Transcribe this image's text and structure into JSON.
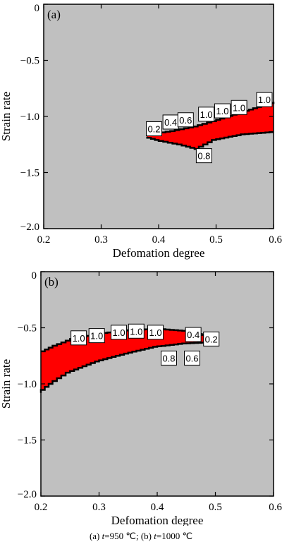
{
  "colors": {
    "background": "#c0c0c0",
    "instability": "#ff0000",
    "contour": "#000000"
  },
  "caption": {
    "a_prefix": "(a) ",
    "a_var": "t",
    "a_value": "=950 ℃; ",
    "b_prefix": "(b) ",
    "b_var": "t",
    "b_value": "=1000 ℃"
  },
  "chart_data": [
    {
      "type": "heatmap",
      "panel_label": "(a)",
      "title": "",
      "xlabel": "Defomation degree",
      "ylabel": "Strain rate",
      "xlim": [
        0.2,
        0.6
      ],
      "ylim": [
        -2.0,
        0
      ],
      "xticks": [
        0.2,
        0.3,
        0.4,
        0.5,
        0.6
      ],
      "xtick_labels": [
        "0.2",
        "0.3",
        "0.4",
        "0.5",
        "0.6"
      ],
      "yticks": [
        0,
        -0.5,
        -1.0,
        -1.5,
        -2.0
      ],
      "ytick_labels": [
        "0",
        "−0.5",
        "−1.0",
        "−1.5",
        "−2.0"
      ],
      "instability_region": {
        "upper": [
          [
            0.38,
            -1.16
          ],
          [
            0.42,
            -1.13
          ],
          [
            0.46,
            -1.09
          ],
          [
            0.5,
            -1.03
          ],
          [
            0.55,
            -0.95
          ],
          [
            0.6,
            -0.87
          ]
        ],
        "lower": [
          [
            0.6,
            -1.14
          ],
          [
            0.55,
            -1.16
          ],
          [
            0.5,
            -1.21
          ],
          [
            0.47,
            -1.29
          ],
          [
            0.44,
            -1.25
          ],
          [
            0.4,
            -1.21
          ],
          [
            0.38,
            -1.18
          ]
        ]
      },
      "contour_labels": [
        {
          "text": "0.2",
          "x": 0.392,
          "y": -1.11
        },
        {
          "text": "0.4",
          "x": 0.421,
          "y": -1.05
        },
        {
          "text": "0.6",
          "x": 0.447,
          "y": -1.03
        },
        {
          "text": "1.0",
          "x": 0.483,
          "y": -0.98
        },
        {
          "text": "1.0",
          "x": 0.511,
          "y": -0.95
        },
        {
          "text": "1.0",
          "x": 0.54,
          "y": -0.92
        },
        {
          "text": "1.0",
          "x": 0.584,
          "y": -0.85
        },
        {
          "text": "0.8",
          "x": 0.479,
          "y": -1.35
        }
      ]
    },
    {
      "type": "heatmap",
      "panel_label": "(b)",
      "title": "",
      "xlabel": "Defomation degree",
      "ylabel": "Strain rate",
      "xlim": [
        0.2,
        0.6
      ],
      "ylim": [
        -2.0,
        0
      ],
      "xticks": [
        0.2,
        0.3,
        0.4,
        0.5,
        0.6
      ],
      "xtick_labels": [
        "0.2",
        "0.3",
        "0.4",
        "0.5",
        "0.6"
      ],
      "yticks": [
        0,
        -0.5,
        -1.0,
        -1.5,
        -2.0
      ],
      "ytick_labels": [
        "0",
        "−0.5",
        "−1.0",
        "−1.5",
        "−2.0"
      ],
      "instability_region": {
        "upper": [
          [
            0.2,
            -0.71
          ],
          [
            0.22,
            -0.66
          ],
          [
            0.25,
            -0.6
          ],
          [
            0.3,
            -0.55
          ],
          [
            0.35,
            -0.52
          ],
          [
            0.4,
            -0.51
          ],
          [
            0.45,
            -0.53
          ],
          [
            0.49,
            -0.58
          ]
        ],
        "lower": [
          [
            0.49,
            -0.63
          ],
          [
            0.45,
            -0.64
          ],
          [
            0.4,
            -0.67
          ],
          [
            0.35,
            -0.73
          ],
          [
            0.3,
            -0.8
          ],
          [
            0.25,
            -0.9
          ],
          [
            0.22,
            -1.0
          ],
          [
            0.2,
            -1.08
          ]
        ]
      },
      "contour_labels": [
        {
          "text": "1.0",
          "x": 0.265,
          "y": -0.59
        },
        {
          "text": "1.0",
          "x": 0.296,
          "y": -0.57
        },
        {
          "text": "1.0",
          "x": 0.334,
          "y": -0.54
        },
        {
          "text": "1.0",
          "x": 0.364,
          "y": -0.53
        },
        {
          "text": "1.0",
          "x": 0.397,
          "y": -0.54
        },
        {
          "text": "0.4",
          "x": 0.462,
          "y": -0.56
        },
        {
          "text": "0.2",
          "x": 0.493,
          "y": -0.6
        },
        {
          "text": "0.8",
          "x": 0.42,
          "y": -0.77
        },
        {
          "text": "0.6",
          "x": 0.46,
          "y": -0.77
        }
      ]
    }
  ]
}
